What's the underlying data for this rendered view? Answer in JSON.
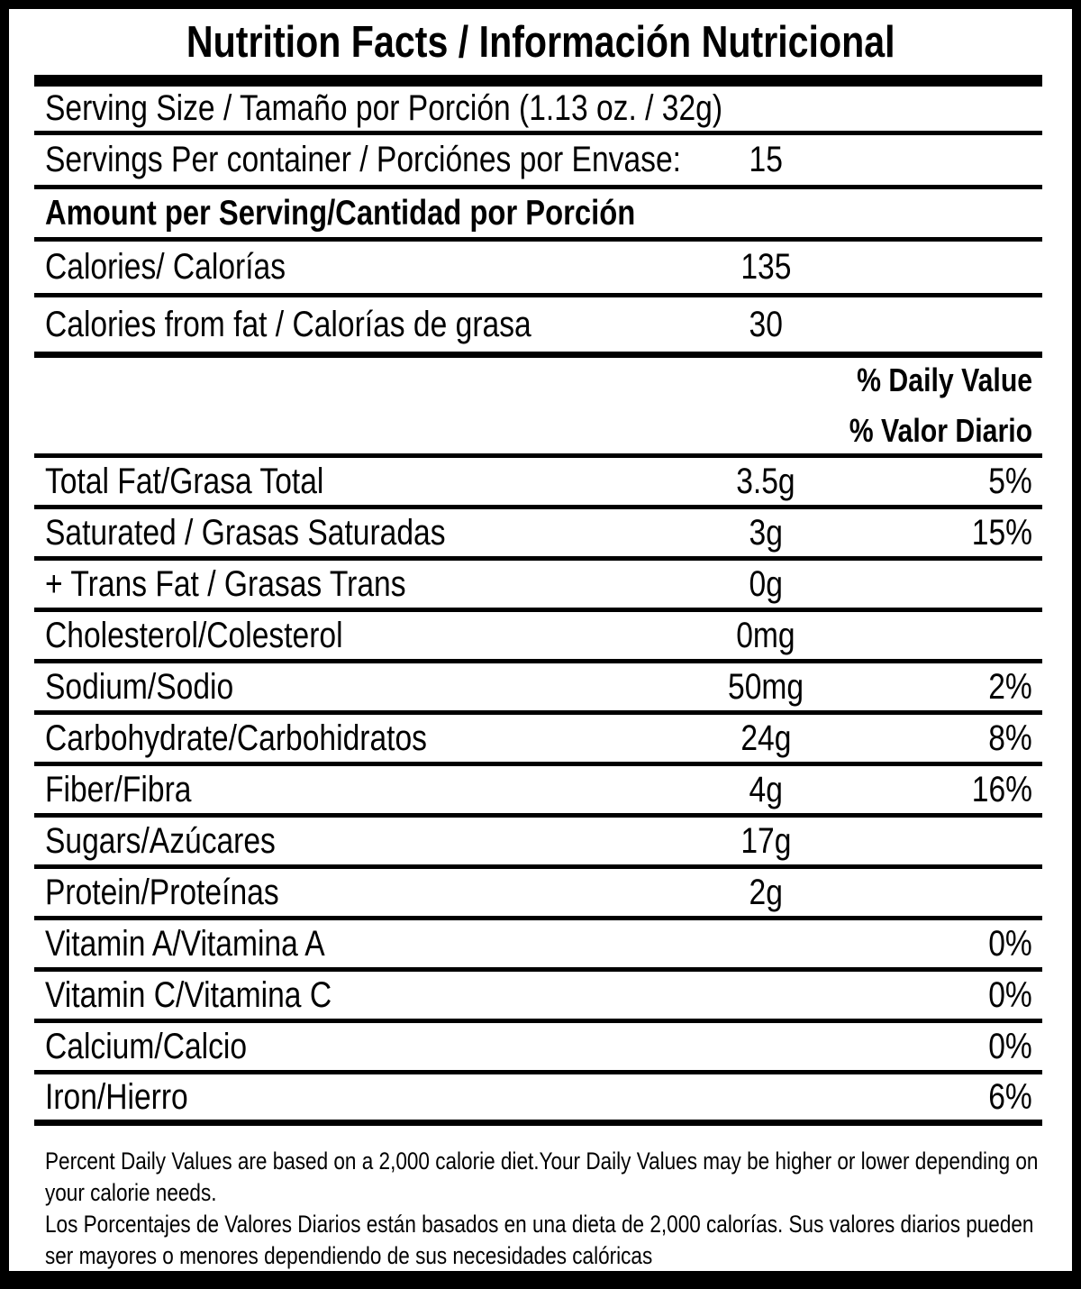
{
  "label": {
    "title": "Nutrition Facts / Información Nutricional",
    "serving_size": "Serving Size / Tamaño por Porción (1.13 oz. / 32g)",
    "servings_per_container": {
      "label": "Servings Per container / Porciónes por Envase:",
      "value": "15"
    },
    "amount_per_serving_header": "Amount per Serving/Cantidad por Porción",
    "calories": {
      "label": "Calories/ Calorías",
      "value": "135"
    },
    "calories_from_fat": {
      "label": "Calories from fat / Calorías de grasa",
      "value": "30"
    },
    "daily_value_header": {
      "line1": "% Daily Value",
      "line2": "% Valor Diario"
    },
    "nutrients": [
      {
        "id": "total-fat",
        "label": "Total Fat/Grasa Total",
        "amount": "3.5g",
        "dv": "5%"
      },
      {
        "id": "saturated-fat",
        "label": "Saturated / Grasas Saturadas",
        "amount": "3g",
        "dv": "15%"
      },
      {
        "id": "trans-fat",
        "label": "+ Trans Fat / Grasas Trans",
        "amount": "0g",
        "dv": ""
      },
      {
        "id": "cholesterol",
        "label": "Cholesterol/Colesterol",
        "amount": "0mg",
        "dv": ""
      },
      {
        "id": "sodium",
        "label": "Sodium/Sodio",
        "amount": "50mg",
        "dv": "2%"
      },
      {
        "id": "carbohydrate",
        "label": "Carbohydrate/Carbohidratos",
        "amount": "24g",
        "dv": "8%"
      },
      {
        "id": "fiber",
        "label": "Fiber/Fibra",
        "amount": "4g",
        "dv": "16%"
      },
      {
        "id": "sugars",
        "label": "Sugars/Azúcares",
        "amount": "17g",
        "dv": ""
      },
      {
        "id": "protein",
        "label": "Protein/Proteínas",
        "amount": "2g",
        "dv": ""
      },
      {
        "id": "vitamin-a",
        "label": "Vitamin A/Vitamina A",
        "amount": "",
        "dv": "0%"
      },
      {
        "id": "vitamin-c",
        "label": "Vitamin C/Vitamina C",
        "amount": "",
        "dv": "0%"
      },
      {
        "id": "calcium",
        "label": "Calcium/Calcio",
        "amount": "",
        "dv": "0%"
      },
      {
        "id": "iron",
        "label": "Iron/Hierro",
        "amount": "",
        "dv": "6%"
      }
    ],
    "footnote_en": "Percent Daily Values are based on a 2,000 calorie diet.Your Daily Values may be higher or lower depending on your calorie needs.",
    "footnote_es": "Los Porcentajes de Valores Diarios están basados en una dieta de 2,000 calorías. Sus valores diarios pueden ser mayores o menores dependiendo de sus necesidades calóricas",
    "colors": {
      "text": "#000000",
      "background": "#ffffff"
    }
  }
}
